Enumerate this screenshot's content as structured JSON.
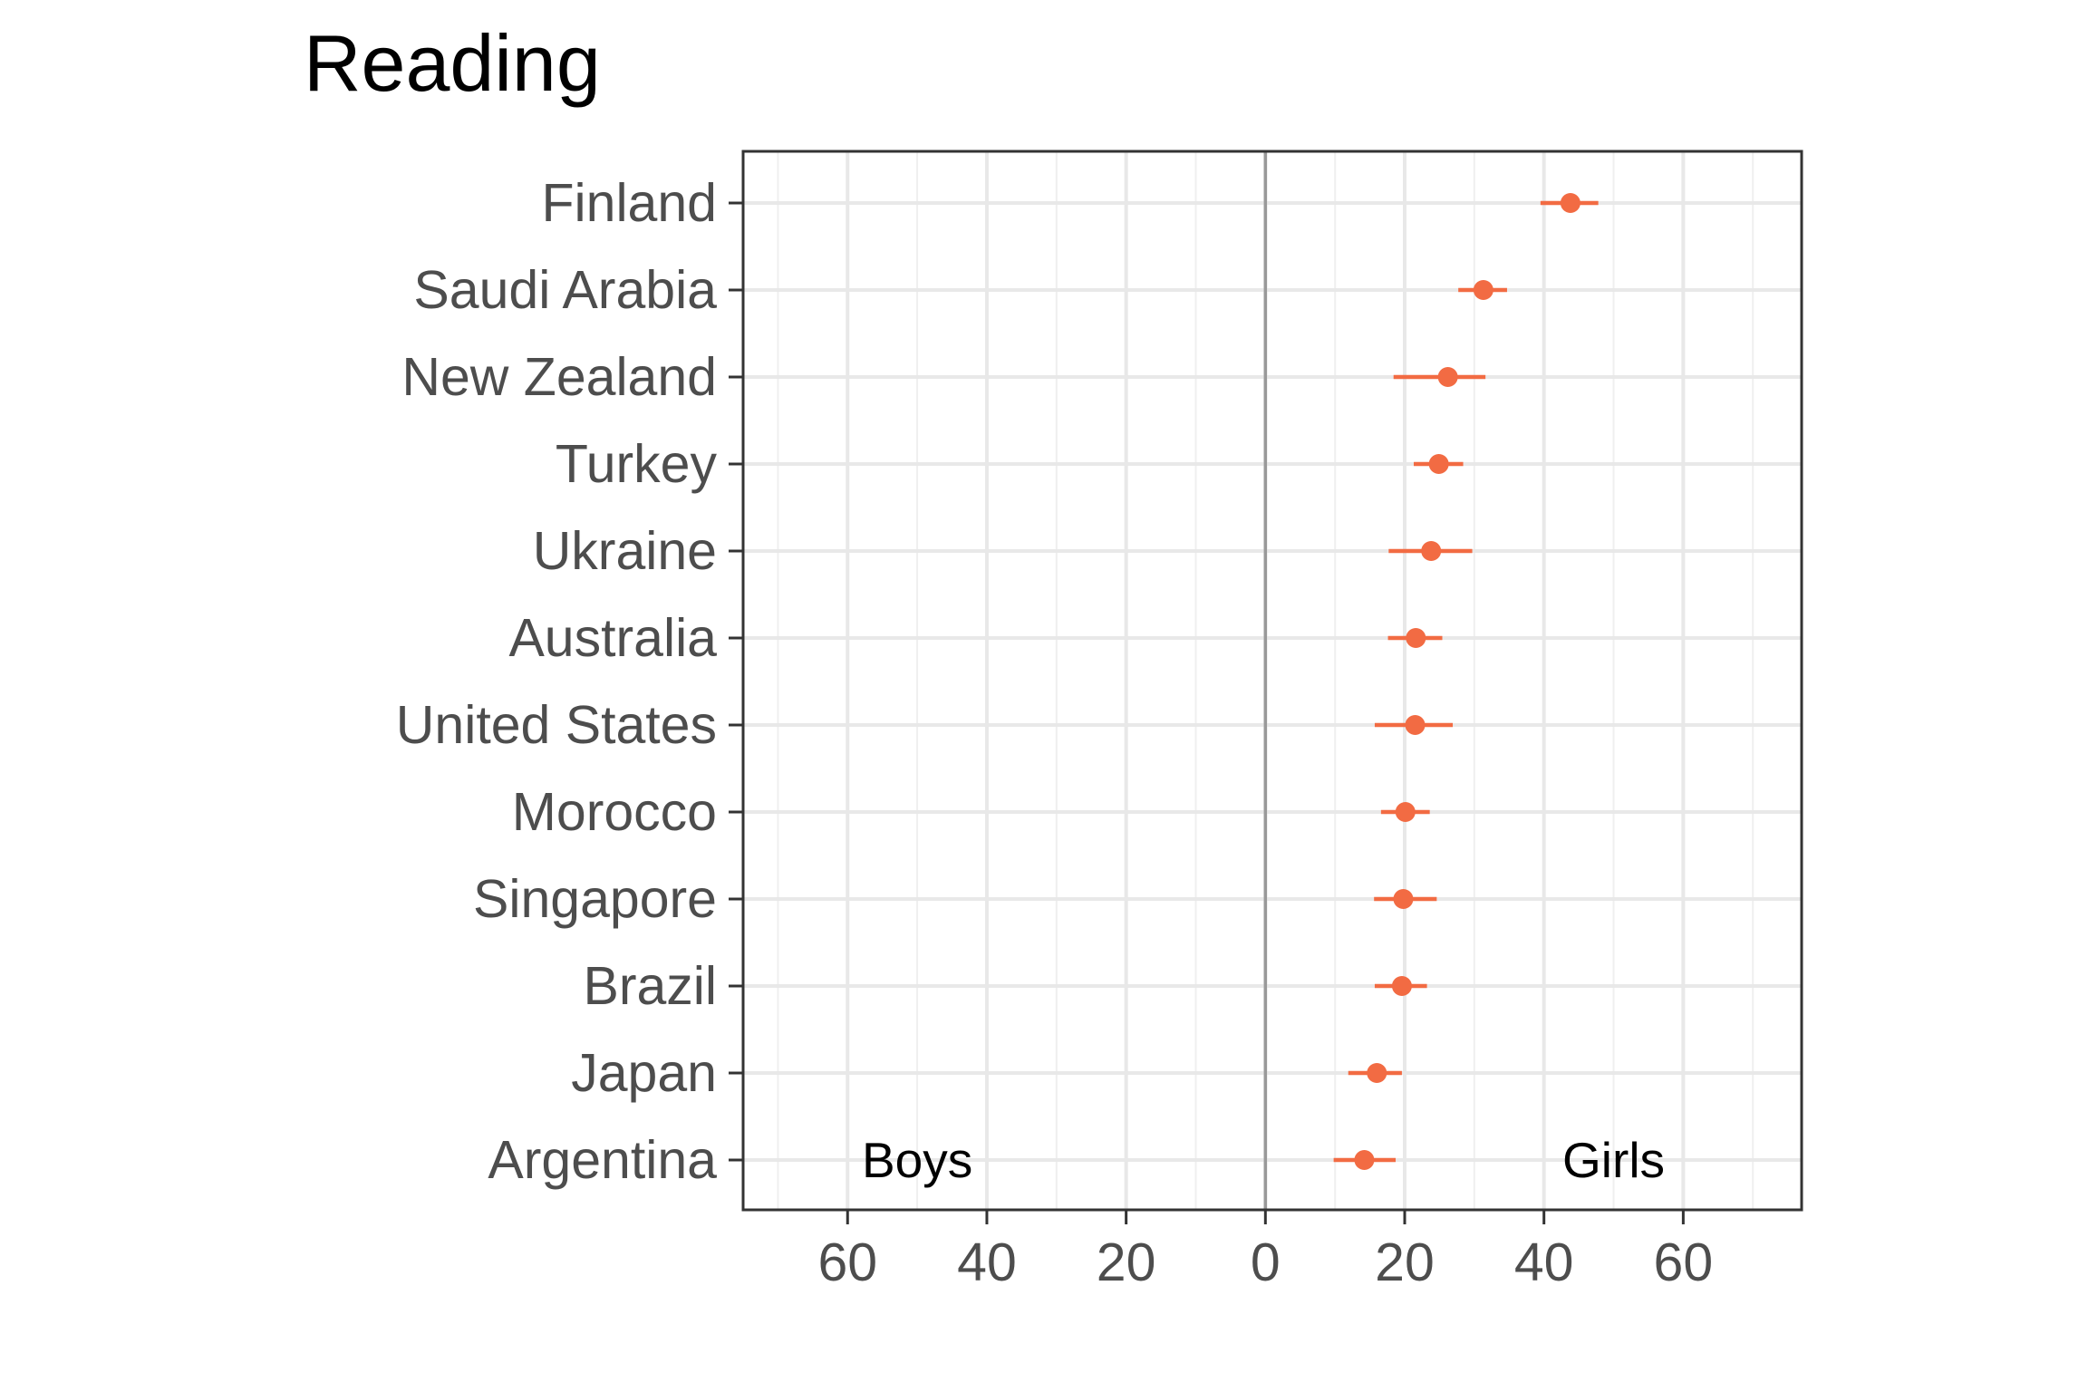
{
  "chart_data": {
    "type": "scatter",
    "title": "Reading",
    "xlabel": "",
    "ylabel": "",
    "xlim": [
      -75,
      77
    ],
    "x_ticks": [
      -60,
      -40,
      -20,
      0,
      20,
      40,
      60
    ],
    "x_tick_labels": [
      "60",
      "40",
      "20",
      "0",
      "20",
      "40",
      "60"
    ],
    "grid": true,
    "categories": [
      "Finland",
      "Saudi Arabia",
      "New Zealand",
      "Turkey",
      "Ukraine",
      "Australia",
      "United States",
      "Morocco",
      "Singapore",
      "Brazil",
      "Japan",
      "Argentina"
    ],
    "values": [
      43.8,
      31.3,
      26.2,
      24.9,
      23.8,
      21.6,
      21.5,
      20.1,
      19.8,
      19.6,
      16.0,
      14.2
    ],
    "ci_low": [
      39.5,
      27.7,
      18.4,
      21.3,
      17.7,
      17.6,
      15.7,
      16.6,
      15.6,
      15.7,
      11.9,
      9.8
    ],
    "ci_high": [
      47.8,
      34.7,
      31.6,
      28.4,
      29.7,
      25.4,
      26.9,
      23.6,
      24.6,
      23.2,
      19.6,
      18.7
    ],
    "annotations": [
      {
        "text": "Boys",
        "x": -50
      },
      {
        "text": "Girls",
        "x": 50
      }
    ],
    "point_color": "#f26b43",
    "zero_line_color": "#999999"
  }
}
